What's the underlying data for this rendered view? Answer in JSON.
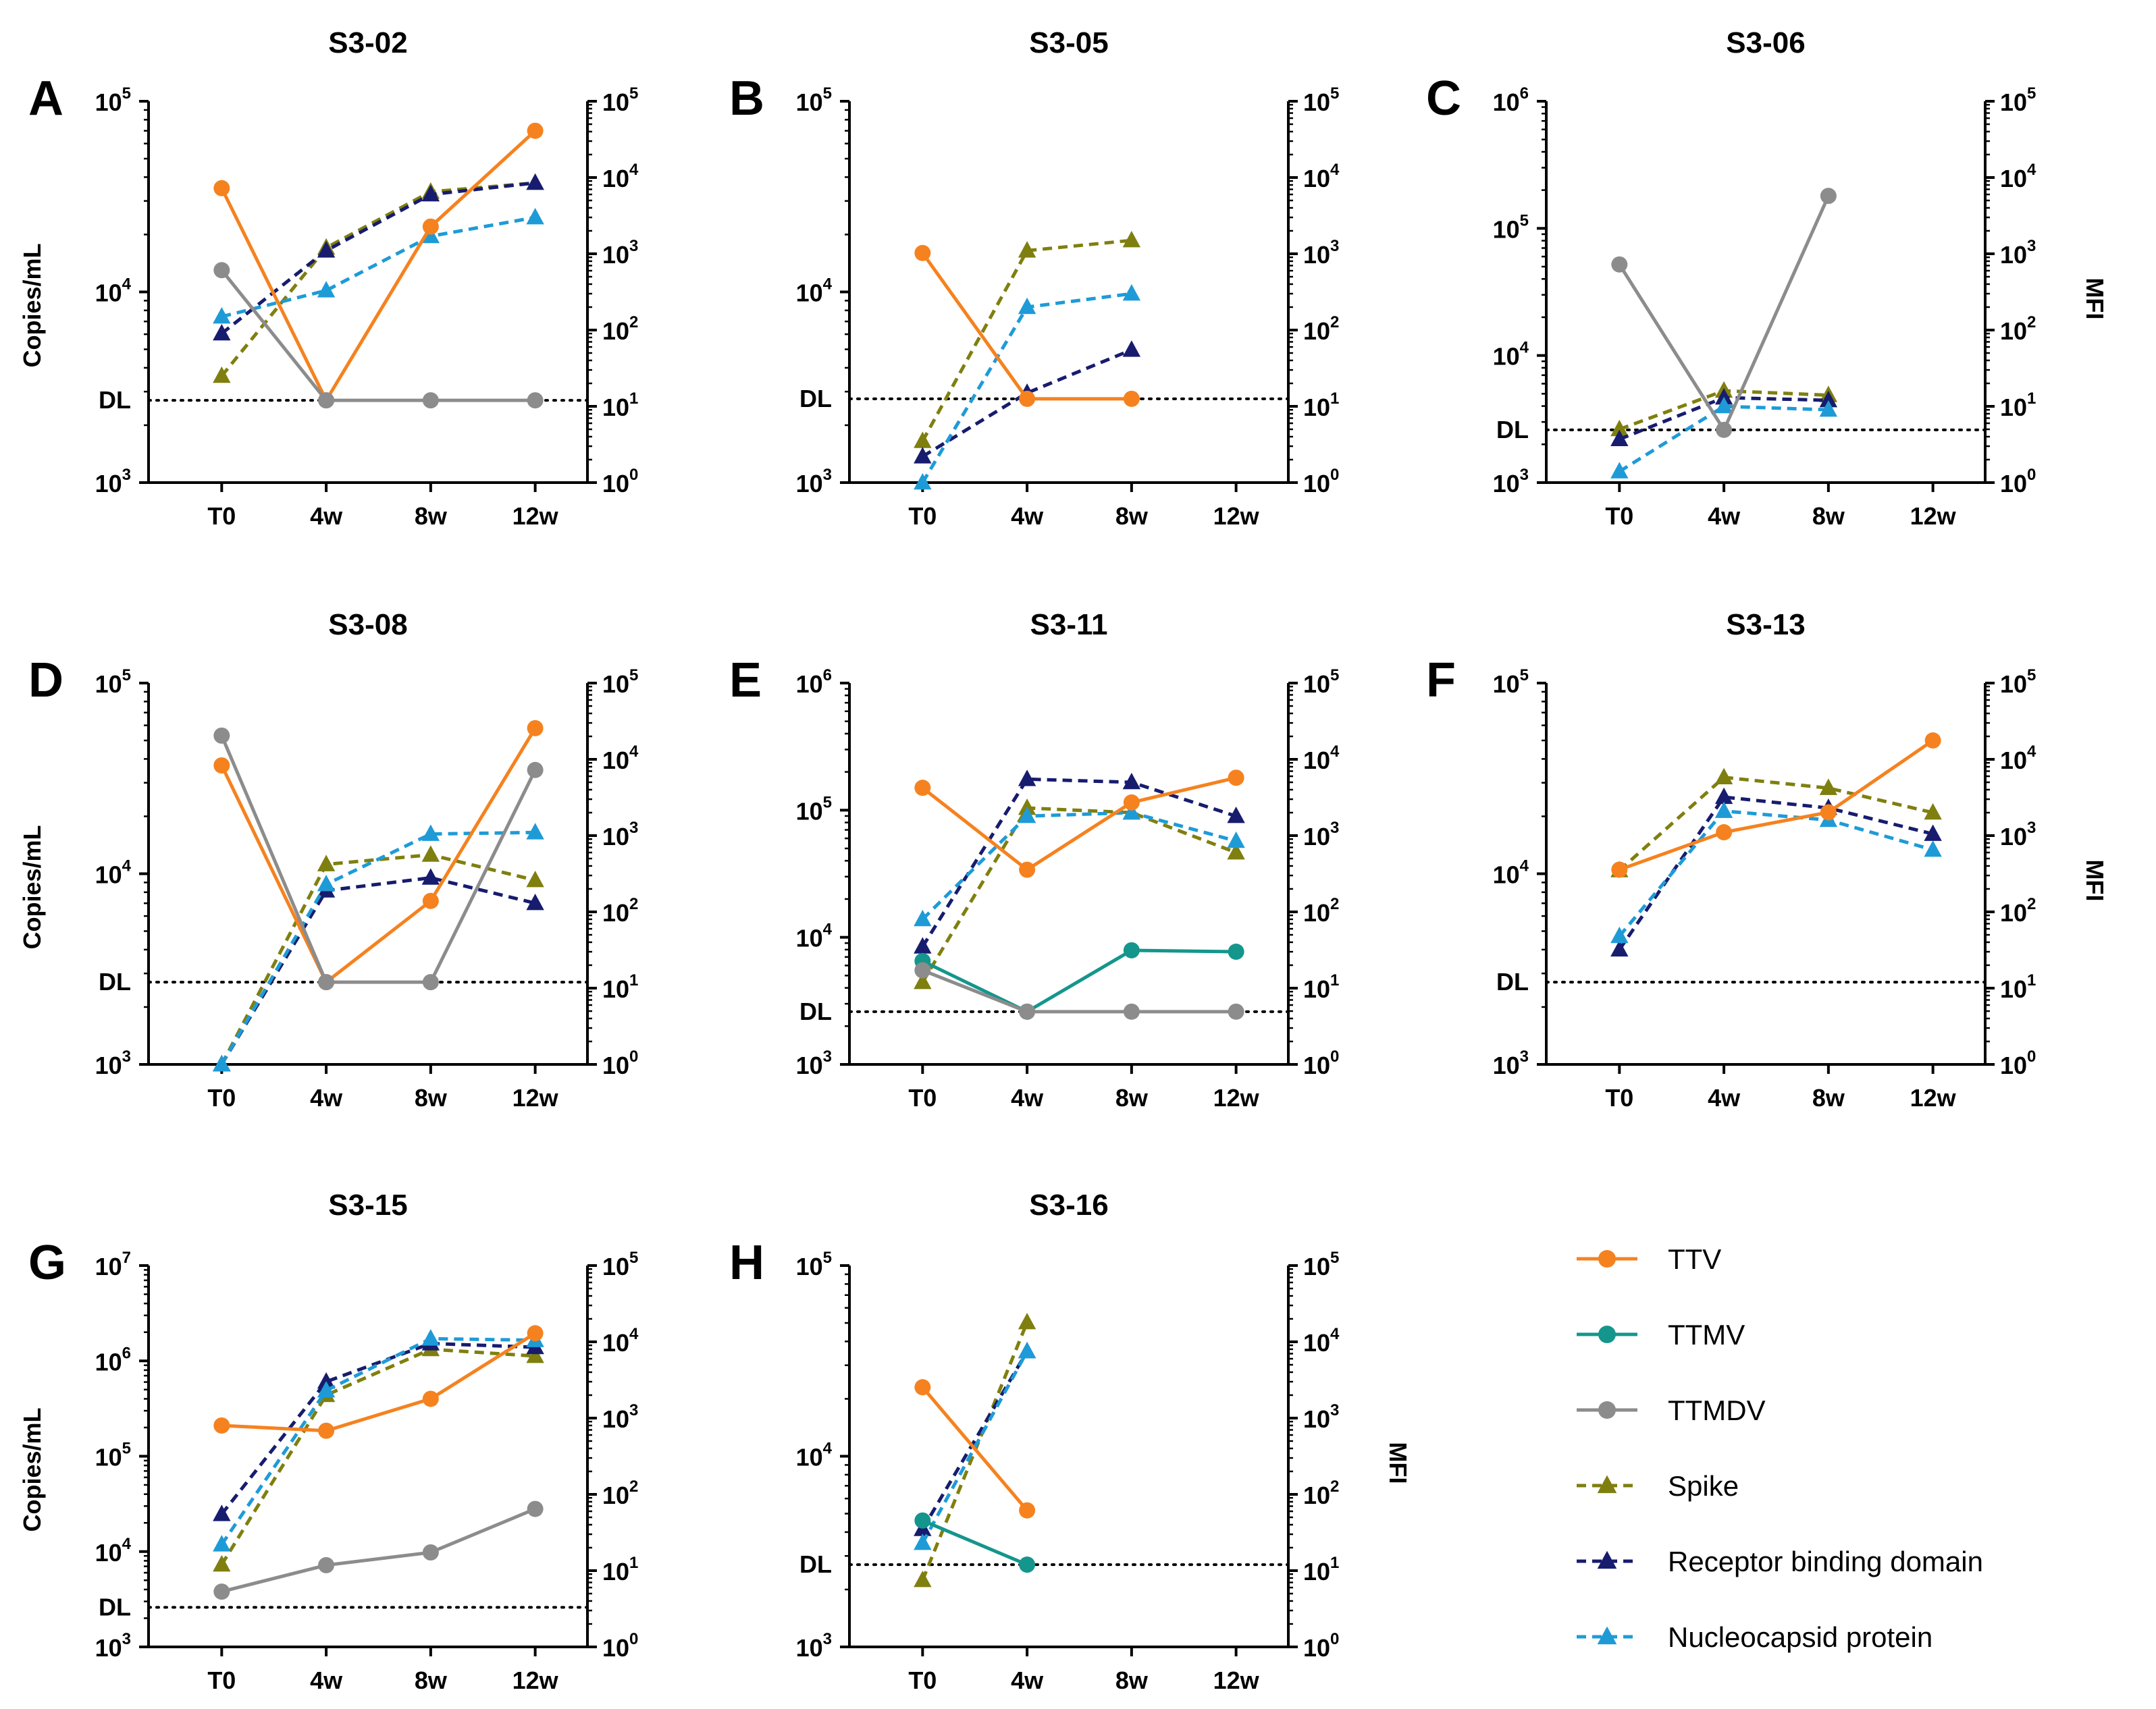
{
  "figure": {
    "background": "#ffffff"
  },
  "series_styles": [
    {
      "key": "TTV",
      "name": "TTV",
      "color": "#F5821F",
      "marker": "circle",
      "dashed": false
    },
    {
      "key": "TTMV",
      "name": "TTMV",
      "color": "#14968C",
      "marker": "circle",
      "dashed": false
    },
    {
      "key": "TTMDV",
      "name": "TTMDV",
      "color": "#8C8C8C",
      "marker": "circle",
      "dashed": false
    },
    {
      "key": "Spike",
      "name": "Spike",
      "color": "#7F7F0F",
      "marker": "triangle",
      "dashed": true
    },
    {
      "key": "RBD",
      "name": "Receptor binding domain",
      "color": "#171C6E",
      "marker": "triangle",
      "dashed": true
    },
    {
      "key": "NP",
      "name": "Nucleocapsid protein",
      "color": "#1E9BD7",
      "marker": "triangle",
      "dashed": true
    }
  ],
  "chart_data": [
    {
      "type": "line",
      "letter": "A",
      "title": "S3-02",
      "categories": [
        "T0",
        "4w",
        "8w",
        "12w"
      ],
      "ylabel_left": "Copies/mL",
      "ylabel_right": "",
      "left_exp_range": [
        3,
        5
      ],
      "right_exp_range": [
        0,
        5
      ],
      "dl_label": "DL",
      "dl_left_value": 2700,
      "series": [
        {
          "key": "TTV",
          "axis": "left",
          "values": [
            35000,
            2700,
            22000,
            70000
          ]
        },
        {
          "key": "TTMDV",
          "axis": "left",
          "values": [
            13000,
            2700,
            2700,
            2700
          ]
        },
        {
          "key": "Spike",
          "axis": "right",
          "values": [
            25,
            1200,
            6500,
            8500
          ]
        },
        {
          "key": "RBD",
          "axis": "right",
          "values": [
            90,
            1100,
            6000,
            8500
          ]
        },
        {
          "key": "NP",
          "axis": "right",
          "values": [
            150,
            330,
            1700,
            3000
          ]
        }
      ]
    },
    {
      "type": "line",
      "letter": "B",
      "title": "S3-05",
      "categories": [
        "T0",
        "4w",
        "8w",
        "12w"
      ],
      "ylabel_left": "",
      "ylabel_right": "",
      "left_exp_range": [
        3,
        5
      ],
      "right_exp_range": [
        0,
        5
      ],
      "dl_label": "DL",
      "dl_left_value": 2750,
      "series": [
        {
          "key": "TTV",
          "axis": "left",
          "values": [
            16000,
            2750,
            2750,
            null
          ]
        },
        {
          "key": "Spike",
          "axis": "right",
          "values": [
            3.5,
            1100,
            1500,
            null
          ]
        },
        {
          "key": "RBD",
          "axis": "right",
          "values": [
            2.2,
            15,
            55,
            null
          ]
        },
        {
          "key": "NP",
          "axis": "right",
          "values": [
            1,
            200,
            300,
            null
          ]
        }
      ]
    },
    {
      "type": "line",
      "letter": "C",
      "title": "S3-06",
      "categories": [
        "T0",
        "4w",
        "8w",
        "12w"
      ],
      "ylabel_left": "",
      "ylabel_right": "MFI",
      "left_exp_range": [
        3,
        6
      ],
      "right_exp_range": [
        0,
        5
      ],
      "dl_label": "DL",
      "dl_left_value": 2600,
      "series": [
        {
          "key": "TTV",
          "axis": "left",
          "values": [
            null,
            null,
            null,
            null
          ]
        },
        {
          "key": "TTMDV",
          "axis": "left",
          "values": [
            52000,
            2600,
            180000,
            null
          ]
        },
        {
          "key": "Spike",
          "axis": "right",
          "values": [
            5,
            16,
            14,
            null
          ]
        },
        {
          "key": "RBD",
          "axis": "right",
          "values": [
            3.7,
            13,
            12,
            null
          ]
        },
        {
          "key": "NP",
          "axis": "right",
          "values": [
            1.4,
            10,
            9,
            null
          ]
        }
      ]
    },
    {
      "type": "line",
      "letter": "D",
      "title": "S3-08",
      "categories": [
        "T0",
        "4w",
        "8w",
        "12w"
      ],
      "ylabel_left": "Copies/mL",
      "ylabel_right": "",
      "left_exp_range": [
        3,
        5
      ],
      "right_exp_range": [
        0,
        5
      ],
      "dl_label": "DL",
      "dl_left_value": 2700,
      "series": [
        {
          "key": "TTV",
          "axis": "left",
          "values": [
            37000,
            2700,
            7200,
            58000
          ]
        },
        {
          "key": "TTMDV",
          "axis": "left",
          "values": [
            53000,
            2700,
            2700,
            35000
          ]
        },
        {
          "key": "Spike",
          "axis": "right",
          "values": [
            1,
            420,
            560,
            260
          ]
        },
        {
          "key": "RBD",
          "axis": "right",
          "values": [
            1,
            190,
            280,
            130
          ]
        },
        {
          "key": "NP",
          "axis": "right",
          "values": [
            1,
            230,
            1050,
            1100
          ]
        }
      ]
    },
    {
      "type": "line",
      "letter": "E",
      "title": "S3-11",
      "categories": [
        "T0",
        "4w",
        "8w",
        "12w"
      ],
      "ylabel_left": "",
      "ylabel_right": "",
      "left_exp_range": [
        3,
        6
      ],
      "right_exp_range": [
        0,
        5
      ],
      "dl_label": "DL",
      "dl_left_value": 2600,
      "series": [
        {
          "key": "TTV",
          "axis": "left",
          "values": [
            150000,
            34000,
            115000,
            180000
          ]
        },
        {
          "key": "TTMV",
          "axis": "left",
          "values": [
            6500,
            2600,
            7900,
            7700
          ]
        },
        {
          "key": "TTMDV",
          "axis": "left",
          "values": [
            5500,
            2600,
            2600,
            2600
          ]
        },
        {
          "key": "Spike",
          "axis": "right",
          "values": [
            12,
            2300,
            2000,
            600
          ]
        },
        {
          "key": "RBD",
          "axis": "right",
          "values": [
            35,
            5500,
            5000,
            1800
          ]
        },
        {
          "key": "NP",
          "axis": "right",
          "values": [
            80,
            1800,
            2000,
            850
          ]
        }
      ]
    },
    {
      "type": "line",
      "letter": "F",
      "title": "S3-13",
      "categories": [
        "T0",
        "4w",
        "8w",
        "12w"
      ],
      "ylabel_left": "",
      "ylabel_right": "MFI",
      "left_exp_range": [
        3,
        5
      ],
      "right_exp_range": [
        0,
        5
      ],
      "dl_label": "DL",
      "dl_left_value": 2700,
      "series": [
        {
          "key": "TTV",
          "axis": "left",
          "values": [
            10500,
            16500,
            21000,
            50000
          ]
        },
        {
          "key": "Spike",
          "axis": "right",
          "values": [
            350,
            5800,
            4200,
            2000
          ]
        },
        {
          "key": "RBD",
          "axis": "right",
          "values": [
            32,
            3200,
            2300,
            1050
          ]
        },
        {
          "key": "NP",
          "axis": "right",
          "values": [
            48,
            2100,
            1600,
            650
          ]
        }
      ]
    },
    {
      "type": "line",
      "letter": "G",
      "title": "S3-15",
      "categories": [
        "T0",
        "4w",
        "8w",
        "12w"
      ],
      "ylabel_left": "Copies/mL",
      "ylabel_right": "",
      "left_exp_range": [
        3,
        7
      ],
      "right_exp_range": [
        0,
        5
      ],
      "dl_label": "DL",
      "dl_left_value": 2600,
      "series": [
        {
          "key": "TTV",
          "axis": "left",
          "values": [
            210000,
            185000,
            400000,
            1950000
          ]
        },
        {
          "key": "TTMDV",
          "axis": "left",
          "values": [
            3800,
            7200,
            9800,
            28000
          ]
        },
        {
          "key": "Spike",
          "axis": "right",
          "values": [
            12,
            2000,
            8000,
            6500
          ]
        },
        {
          "key": "RBD",
          "axis": "right",
          "values": [
            55,
            3000,
            9500,
            8500
          ]
        },
        {
          "key": "NP",
          "axis": "right",
          "values": [
            22,
            2300,
            11000,
            10500
          ]
        }
      ]
    },
    {
      "type": "line",
      "letter": "H",
      "title": "S3-16",
      "categories": [
        "T0",
        "4w",
        "8w",
        "12w"
      ],
      "ylabel_left": "",
      "ylabel_right": "MFI",
      "left_exp_range": [
        3,
        5
      ],
      "right_exp_range": [
        0,
        5
      ],
      "dl_label": "DL",
      "dl_left_value": 2700,
      "series": [
        {
          "key": "TTV",
          "axis": "left",
          "values": [
            23000,
            5200,
            null,
            null
          ]
        },
        {
          "key": "TTMV",
          "axis": "left",
          "values": [
            4600,
            2700,
            null,
            null
          ]
        },
        {
          "key": "Spike",
          "axis": "right",
          "values": [
            7.5,
            18000,
            null,
            null
          ]
        },
        {
          "key": "RBD",
          "axis": "right",
          "values": [
            35,
            7500,
            null,
            null
          ]
        },
        {
          "key": "NP",
          "axis": "right",
          "values": [
            23,
            7500,
            null,
            null
          ]
        }
      ]
    }
  ]
}
